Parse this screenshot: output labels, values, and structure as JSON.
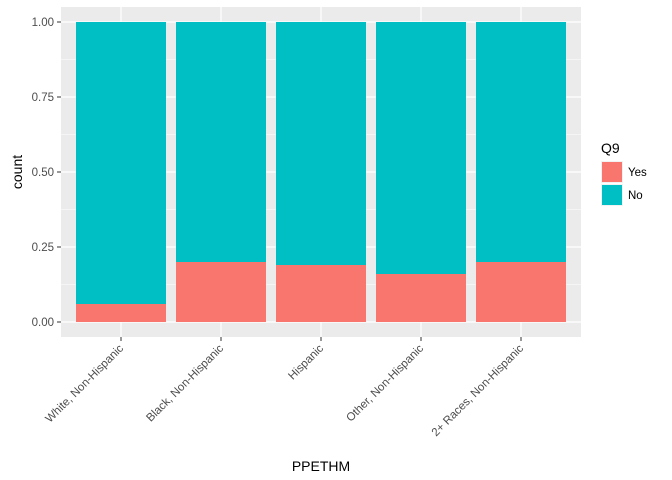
{
  "chart_data": {
    "type": "bar",
    "stacked": true,
    "xlabel": "PPETHM",
    "ylabel": "count",
    "categories": [
      "White, Non-Hispanic",
      "Black, Non-Hispanic",
      "Hispanic",
      "Other, Non-Hispanic",
      "2+ Races, Non-Hispanic"
    ],
    "ylim": [
      0,
      1
    ],
    "yticks": [
      "0.00",
      "0.25",
      "0.50",
      "0.75",
      "1.00"
    ],
    "ytick_values": [
      0,
      0.25,
      0.5,
      0.75,
      1
    ],
    "legend": {
      "title": "Q9",
      "position": "right"
    },
    "series": [
      {
        "name": "Yes",
        "color": "#F8766D",
        "values": [
          0.06,
          0.2,
          0.19,
          0.16,
          0.2
        ]
      },
      {
        "name": "No",
        "color": "#00BFC4",
        "values": [
          0.94,
          0.8,
          0.81,
          0.84,
          0.8
        ]
      }
    ],
    "panel_background": "#EBEBEB",
    "grid": true,
    "grid_color": "#FFFFFF"
  }
}
